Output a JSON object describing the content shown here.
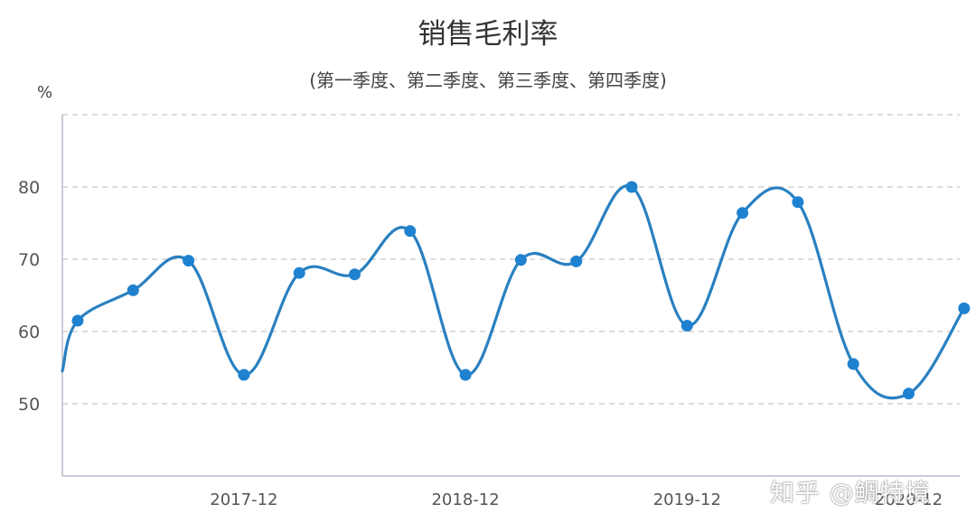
{
  "chart_data": {
    "type": "line",
    "title": "销售毛利率",
    "subtitle": "(第一季度、第二季度、第三季度、第四季度)",
    "ylabel": "%",
    "ylim": [
      40,
      90
    ],
    "yticks": [
      50,
      60,
      70,
      80
    ],
    "grid": true,
    "xtick_labels": [
      "2017-12",
      "2018-12",
      "2019-12",
      "2020-12"
    ],
    "series": [
      {
        "color": "#2980c0",
        "marker_color": "#1f82d0",
        "x": [
          "2017-03",
          "2017-06",
          "2017-09",
          "2017-12",
          "2018-03",
          "2018-06",
          "2018-09",
          "2018-12",
          "2019-03",
          "2019-06",
          "2019-09",
          "2019-12",
          "2020-03",
          "2020-06",
          "2020-09",
          "2020-12",
          "2021-03"
        ],
        "values": [
          61.5,
          65.7,
          69.8,
          54.0,
          68.1,
          67.9,
          73.9,
          54.0,
          69.9,
          69.7,
          80.0,
          60.8,
          76.4,
          77.9,
          55.5,
          51.4,
          63.2
        ]
      }
    ]
  },
  "watermark": "知乎 @鲷特境"
}
